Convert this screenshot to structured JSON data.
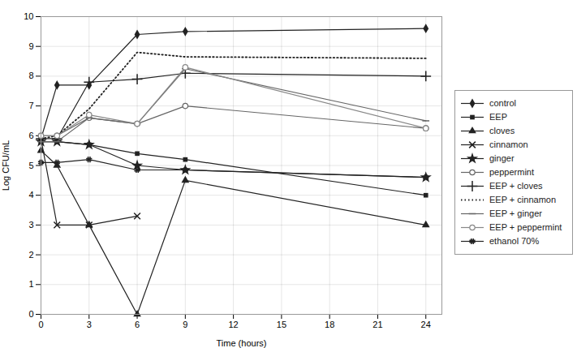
{
  "chart_data": {
    "type": "line",
    "xlabel": "Time (hours)",
    "ylabel": "Log CFU/mL",
    "xlim": [
      0,
      25
    ],
    "ylim": [
      0,
      10
    ],
    "xticks": [
      0,
      3,
      6,
      9,
      12,
      15,
      18,
      21,
      24
    ],
    "yticks": [
      0,
      1,
      2,
      3,
      4,
      5,
      6,
      7,
      8,
      9,
      10
    ],
    "grid": true,
    "legend": "right",
    "series": [
      {
        "name": "control",
        "x": [
          0,
          1,
          3,
          6,
          9,
          24
        ],
        "values": [
          5.9,
          7.7,
          7.7,
          9.4,
          9.5,
          9.6
        ],
        "color": "#222222",
        "marker": "diamond",
        "line_style": "solid"
      },
      {
        "name": "EEP",
        "x": [
          0,
          1,
          3,
          6,
          9,
          24
        ],
        "values": [
          5.8,
          5.8,
          5.7,
          5.4,
          5.2,
          4.0
        ],
        "color": "#222222",
        "marker": "square",
        "line_style": "solid"
      },
      {
        "name": "cloves",
        "x": [
          0,
          1,
          3,
          6,
          9,
          24
        ],
        "values": [
          5.5,
          5.0,
          3.0,
          0.0,
          4.5,
          3.0
        ],
        "color": "#222222",
        "marker": "triangle",
        "line_style": "solid"
      },
      {
        "name": "cinnamon",
        "x": [
          0,
          1,
          3,
          6
        ],
        "values": [
          5.9,
          3.0,
          3.0,
          3.3
        ],
        "color": "#222222",
        "marker": "x",
        "line_style": "solid"
      },
      {
        "name": "ginger",
        "x": [
          0,
          1,
          3,
          6,
          9,
          24
        ],
        "values": [
          5.8,
          5.8,
          5.7,
          5.0,
          4.85,
          4.6
        ],
        "color": "#222222",
        "marker": "star",
        "line_style": "solid"
      },
      {
        "name": "peppermint",
        "x": [
          0,
          1,
          3,
          6,
          9,
          24
        ],
        "values": [
          6.0,
          6.0,
          6.6,
          6.4,
          7.0,
          6.25
        ],
        "color": "#666666",
        "marker": "open_circle",
        "line_style": "solid"
      },
      {
        "name": "EEP + cloves",
        "x": [
          0,
          1,
          3,
          6,
          9,
          24
        ],
        "values": [
          5.9,
          5.9,
          7.8,
          7.9,
          8.1,
          8.0
        ],
        "color": "#222222",
        "marker": "plus",
        "line_style": "solid"
      },
      {
        "name": "EEP + cinnamon",
        "x": [
          0,
          1,
          3,
          6,
          9,
          24
        ],
        "values": [
          5.9,
          6.0,
          6.9,
          8.8,
          8.65,
          8.6
        ],
        "color": "#222222",
        "marker": "none",
        "line_style": "dotted"
      },
      {
        "name": "EEP + ginger",
        "x": [
          0,
          1,
          3,
          6,
          9,
          24
        ],
        "values": [
          5.8,
          5.8,
          6.6,
          6.4,
          8.25,
          6.5
        ],
        "color": "#666666",
        "marker": "hline",
        "line_style": "solid"
      },
      {
        "name": "EEP + peppermint",
        "x": [
          0,
          1,
          3,
          6,
          9,
          24
        ],
        "values": [
          6.0,
          6.0,
          6.7,
          6.4,
          8.3,
          6.25
        ],
        "color": "#888888",
        "marker": "open_circle",
        "line_style": "solid"
      },
      {
        "name": "ethanol 70%",
        "x": [
          0,
          1,
          3,
          6,
          9,
          24
        ],
        "values": [
          5.1,
          5.1,
          5.2,
          4.85,
          4.85,
          4.6
        ],
        "color": "#222222",
        "marker": "hash",
        "line_style": "solid"
      }
    ]
  }
}
